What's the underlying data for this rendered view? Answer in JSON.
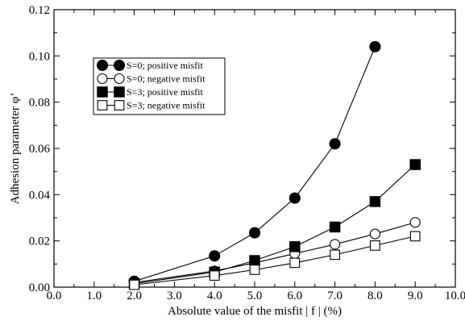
{
  "chart_data": {
    "type": "line",
    "title": "",
    "xlabel": "Absolute value of the misfit | f | (%)",
    "ylabel": "Adhesion parameter φ’",
    "xlim": [
      0.0,
      10.0
    ],
    "ylim": [
      0.0,
      0.12
    ],
    "xticks": [
      "0.0",
      "1.0",
      "2.0",
      "3.0",
      "4.0",
      "5.0",
      "6.0",
      "7.0",
      "8.0",
      "9.0",
      "10.0"
    ],
    "yticks": [
      "0.00",
      "0.02",
      "0.04",
      "0.06",
      "0.08",
      "0.10",
      "0.12"
    ],
    "grid": false,
    "legend_position": "upper-left",
    "series": [
      {
        "name": "S=0; positive misfit",
        "marker": "circle-filled",
        "x": [
          2.0,
          4.0,
          5.0,
          6.0,
          7.0,
          8.0
        ],
        "y": [
          0.0025,
          0.0135,
          0.0235,
          0.0385,
          0.062,
          0.104
        ]
      },
      {
        "name": "S=0; negative misfit",
        "marker": "circle-open",
        "x": [
          2.0,
          4.0,
          5.0,
          6.0,
          7.0,
          8.0,
          9.0
        ],
        "y": [
          0.002,
          0.007,
          0.0105,
          0.0145,
          0.0185,
          0.023,
          0.028
        ]
      },
      {
        "name": "S=3; positive misfit",
        "marker": "square-filled",
        "x": [
          2.0,
          4.0,
          5.0,
          6.0,
          7.0,
          8.0,
          9.0
        ],
        "y": [
          0.0015,
          0.0065,
          0.0115,
          0.0175,
          0.026,
          0.037,
          0.053
        ]
      },
      {
        "name": "S=3; negative misfit",
        "marker": "square-open",
        "x": [
          2.0,
          4.0,
          5.0,
          6.0,
          7.0,
          8.0,
          9.0
        ],
        "y": [
          0.001,
          0.005,
          0.0075,
          0.0105,
          0.014,
          0.018,
          0.022
        ]
      }
    ]
  }
}
